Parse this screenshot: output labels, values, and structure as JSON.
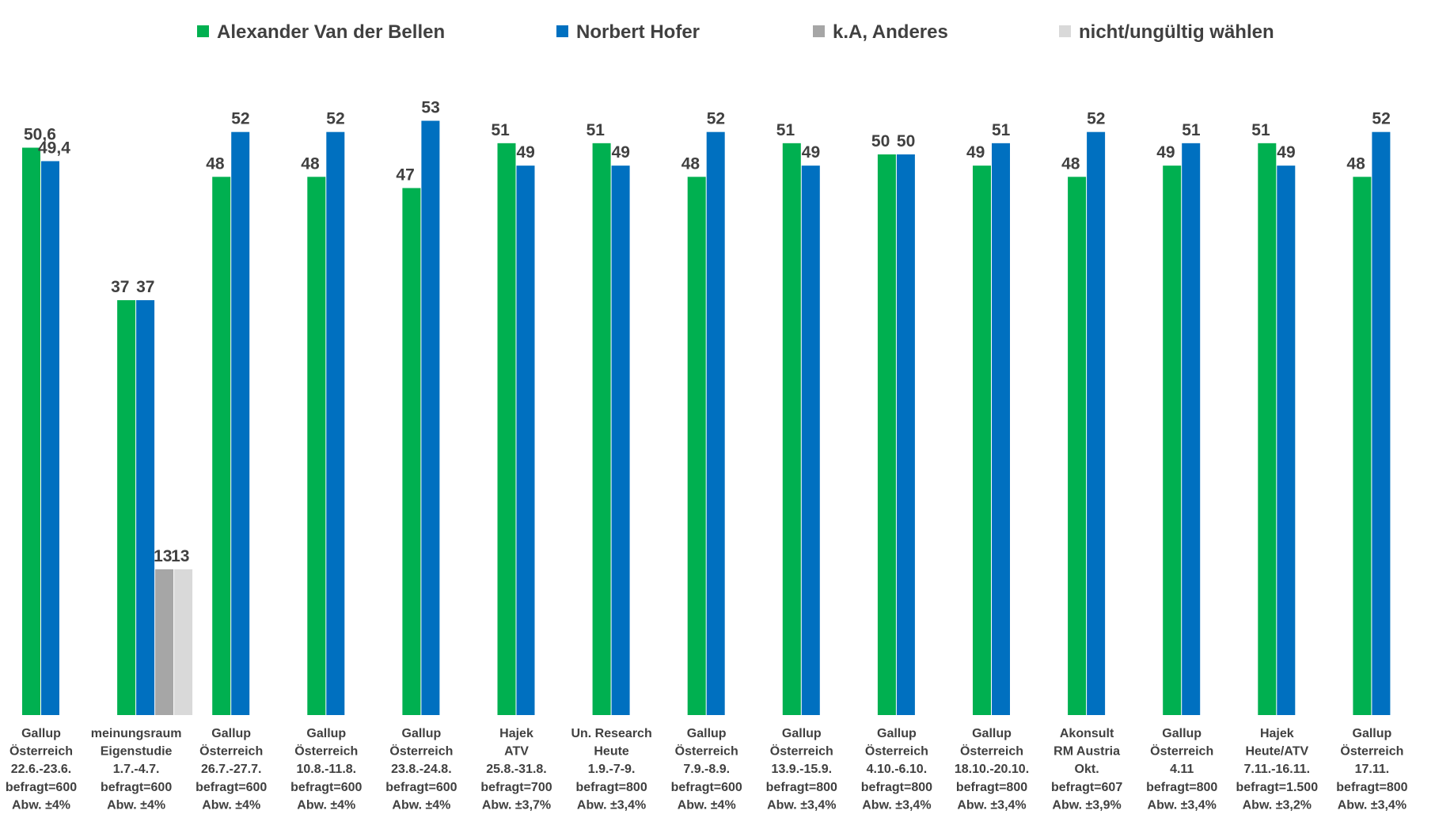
{
  "chart_data": {
    "type": "bar",
    "title": "",
    "xlabel": "",
    "ylabel": "",
    "ylim": [
      0,
      55
    ],
    "grid": false,
    "legend_position": "top",
    "colors": {
      "Alexander Van der Bellen": "#00b050",
      "Norbert Hofer": "#0070c0",
      "k.A, Anderes": "#a6a6a6",
      "nicht/ungültig wählen": "#d9d9d9"
    },
    "categories": [
      [
        "Gallup",
        "Österreich",
        "22.6.-23.6.",
        "befragt=600",
        "Abw. ±4%"
      ],
      [
        "meinungsraum",
        "Eigenstudie",
        "1.7.-4.7.",
        "befragt=600",
        "Abw. ±4%"
      ],
      [
        "Gallup",
        "Österreich",
        "26.7.-27.7.",
        "befragt=600",
        "Abw. ±4%"
      ],
      [
        "Gallup",
        "Österreich",
        "10.8.-11.8.",
        "befragt=600",
        "Abw. ±4%"
      ],
      [
        "Gallup",
        "Österreich",
        "23.8.-24.8.",
        "befragt=600",
        "Abw. ±4%"
      ],
      [
        "Hajek",
        "ATV",
        "25.8.-31.8.",
        "befragt=700",
        "Abw. ±3,7%"
      ],
      [
        "Un. Research",
        "Heute",
        "1.9.-7-9.",
        "befragt=800",
        "Abw. ±3,4%"
      ],
      [
        "Gallup",
        "Österreich",
        "7.9.-8.9.",
        "befragt=600",
        "Abw. ±4%"
      ],
      [
        "Gallup",
        "Österreich",
        "13.9.-15.9.",
        "befragt=800",
        "Abw. ±3,4%"
      ],
      [
        "Gallup",
        "Österreich",
        "4.10.-6.10.",
        "befragt=800",
        "Abw. ±3,4%"
      ],
      [
        "Gallup",
        "Österreich",
        "18.10.-20.10.",
        "befragt=800",
        "Abw. ±3,4%"
      ],
      [
        "Akonsult",
        "RM Austria",
        "Okt.",
        "befragt=607",
        "Abw. ±3,9%"
      ],
      [
        "Gallup",
        "Österreich",
        "4.11",
        "befragt=800",
        "Abw. ±3,4%"
      ],
      [
        "Hajek",
        "Heute/ATV",
        "7.11.-16.11.",
        "befragt=1.500",
        "Abw. ±3,2%"
      ],
      [
        "Gallup",
        "Österreich",
        "17.11.",
        "befragt=800",
        "Abw. ±3,4%"
      ]
    ],
    "series": [
      {
        "name": "Alexander Van der Bellen",
        "values": [
          50.6,
          37,
          48,
          48,
          47,
          51,
          51,
          48,
          51,
          50,
          49,
          48,
          49,
          51,
          48
        ],
        "labels": [
          "50,6",
          "37",
          "48",
          "48",
          "47",
          "51",
          "51",
          "48",
          "51",
          "50",
          "49",
          "48",
          "49",
          "51",
          "48"
        ]
      },
      {
        "name": "Norbert Hofer",
        "values": [
          49.4,
          37,
          52,
          52,
          53,
          49,
          49,
          52,
          49,
          50,
          51,
          52,
          51,
          49,
          52
        ],
        "labels": [
          "49,4",
          "37",
          "52",
          "52",
          "53",
          "49",
          "49",
          "52",
          "49",
          "50",
          "51",
          "52",
          "51",
          "49",
          "52"
        ]
      },
      {
        "name": "k.A, Anderes",
        "values": [
          null,
          13,
          null,
          null,
          null,
          null,
          null,
          null,
          null,
          null,
          null,
          null,
          null,
          null,
          null
        ],
        "labels": [
          "",
          "13",
          "",
          "",
          "",
          "",
          "",
          "",
          "",
          "",
          "",
          "",
          "",
          "",
          ""
        ]
      },
      {
        "name": "nicht/ungültig wählen",
        "values": [
          null,
          13,
          null,
          null,
          null,
          null,
          null,
          null,
          null,
          null,
          null,
          null,
          null,
          null,
          null
        ],
        "labels": [
          "",
          "13",
          "",
          "",
          "",
          "",
          "",
          "",
          "",
          "",
          "",
          "",
          "",
          "",
          ""
        ]
      }
    ]
  }
}
